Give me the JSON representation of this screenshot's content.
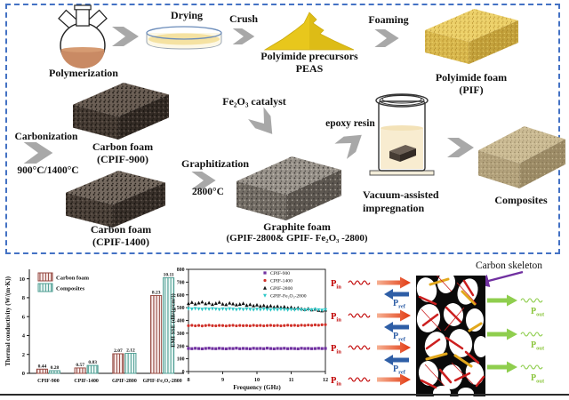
{
  "process": {
    "polymerization_label": "Polymerization",
    "drying_label": "Drying",
    "crush_label": "Crush",
    "precursors_label_1": "Polyimide precursors",
    "precursors_label_2": "PEAS",
    "foaming_label": "Foaming",
    "pif_label_1": "Polyimide foam",
    "pif_label_2": "(PIF)",
    "carbonization_label": "Carbonization",
    "carbonization_temp": "900°C/1400°C",
    "carbon_foam_900_label_1": "Carbon foam",
    "carbon_foam_900_label_2": "(CPIF-900)",
    "carbon_foam_1400_label_1": "Carbon foam",
    "carbon_foam_1400_label_2": "(CPIF-1400)",
    "catalyst_label": "Fe₂O₃ catalyst",
    "graphitization_label": "Graphitization",
    "graphitization_temp": "2800°C",
    "graphite_label_1": "Graphite foam",
    "graphite_label_2": "(GPIF-2800& GPIF- Fe₂O₃ -2800)",
    "epoxy_label": "epoxy resin",
    "vacuum_label_1": "Vacuum-assisted",
    "vacuum_label_2": "impregnation",
    "composites_label": "Composites"
  },
  "schematic": {
    "skeleton_label": "Carbon skeleton",
    "p_in_base": "P",
    "p_in_sub": "in",
    "p_ref_base": "P",
    "p_ref_sub": "ref",
    "p_out_base": "P",
    "p_out_sub": "out"
  },
  "colors": {
    "border_blue": "#4472c4",
    "arrow_gray": "#a8a8a8",
    "pin_red": "#c00000",
    "pref_blue": "#2e5ea6",
    "pout_green": "#8cc63e",
    "skeleton_purple": "#7030a0"
  },
  "chart_data": [
    {
      "type": "bar",
      "categories": [
        "CPIF-900",
        "CPIF-1400",
        "GPIF-2800",
        "GPIF-Fe₂O₃-2800"
      ],
      "series": [
        {
          "name": "Carbon foam",
          "color": "#94473f",
          "values": [
            0.44,
            0.57,
            2.07,
            8.23
          ]
        },
        {
          "name": "Composites",
          "color": "#4d9d92",
          "values": [
            0.28,
            0.83,
            2.12,
            10.11
          ]
        }
      ],
      "xlabel": "",
      "ylabel": "Thermal conductivity (W/(m·K))",
      "ylim": [
        0,
        11
      ],
      "yticks": [
        0,
        2,
        4,
        6,
        8,
        10
      ],
      "bar_value_labels": true,
      "grid": false,
      "legend_position": "top-left"
    },
    {
      "type": "scatter",
      "xlabel": "Frequency (GHz)",
      "ylabel": "EMI SSE (dB/(g/cm³))",
      "xlim": [
        8,
        12
      ],
      "xticks": [
        8,
        9,
        10,
        11,
        12
      ],
      "ylim": [
        0,
        800
      ],
      "yticks": [
        0,
        100,
        200,
        300,
        400,
        500,
        600,
        700,
        800
      ],
      "x_start": 8.0,
      "x_step": 0.1,
      "grid": false,
      "legend_position": "top-right",
      "series": [
        {
          "name": "CPIF-900",
          "marker": "square",
          "color": "#7030a0",
          "values": [
            181,
            179,
            182,
            180,
            178,
            181,
            183,
            180,
            179,
            182,
            180,
            178,
            181,
            180,
            183,
            179,
            181,
            180,
            178,
            182,
            180,
            181,
            179,
            183,
            180,
            178,
            181,
            180,
            182,
            179,
            181,
            180,
            178,
            182,
            180,
            181,
            179,
            180,
            182,
            180,
            181
          ]
        },
        {
          "name": "CPIF-1400",
          "marker": "circle",
          "color": "#d03028",
          "values": [
            359,
            362,
            358,
            361,
            357,
            360,
            363,
            359,
            358,
            361,
            360,
            357,
            360,
            362,
            358,
            361,
            359,
            360,
            358,
            362,
            359,
            361,
            358,
            360,
            362,
            359,
            361,
            358,
            360,
            363,
            360,
            362,
            359,
            363,
            361,
            364,
            362,
            365,
            363,
            366,
            367
          ]
        },
        {
          "name": "GPIF-2800",
          "marker": "triangle-up",
          "color": "#111111",
          "values": [
            533,
            541,
            529,
            537,
            545,
            531,
            538,
            526,
            534,
            542,
            528,
            524,
            536,
            530,
            522,
            527,
            533,
            519,
            525,
            515,
            521,
            512,
            517,
            509,
            514,
            505,
            511,
            502,
            507,
            498,
            503,
            494,
            499,
            491,
            486,
            492,
            483,
            488,
            479,
            475,
            481
          ]
        },
        {
          "name": "GPIF-Fe₂O₃-2800",
          "marker": "triangle-down",
          "color": "#2bc7c7",
          "values": [
            492,
            489,
            493,
            490,
            487,
            491,
            488,
            492,
            489,
            486,
            490,
            487,
            491,
            488,
            485,
            489,
            486,
            490,
            487,
            484,
            488,
            485,
            489,
            486,
            483,
            487,
            484,
            488,
            485,
            482,
            486,
            483,
            487,
            484,
            481,
            485,
            482,
            486,
            483,
            480,
            484
          ]
        }
      ]
    }
  ]
}
